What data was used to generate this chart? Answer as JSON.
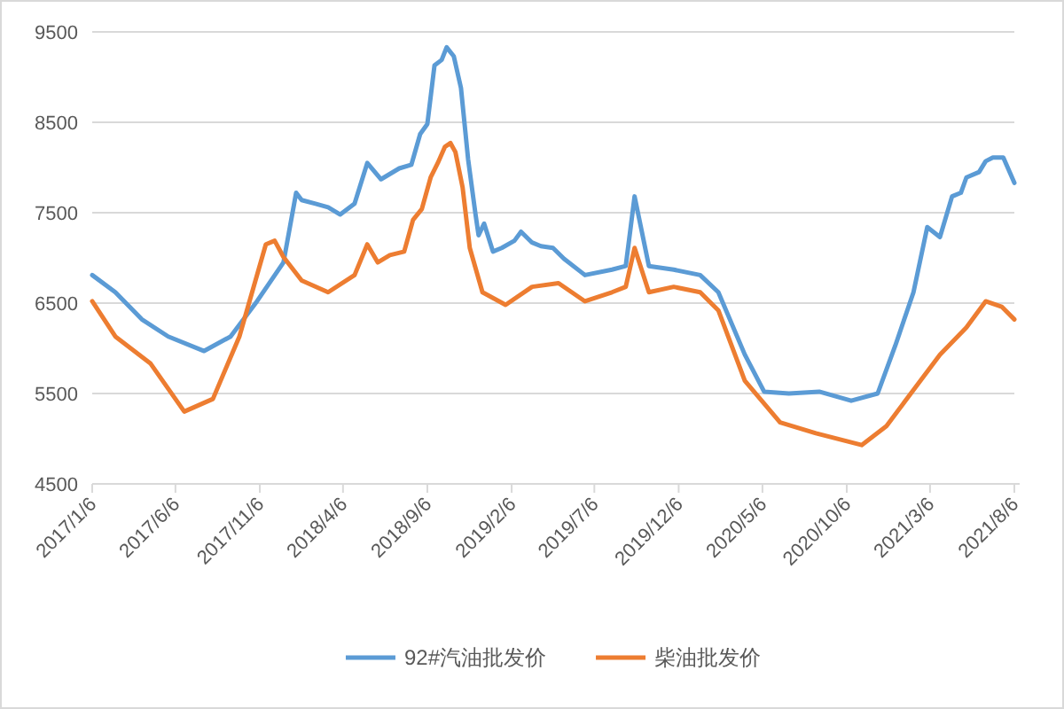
{
  "chart_data": {
    "type": "line",
    "xlim": [
      "2017-01-06",
      "2021-08-06"
    ],
    "xticks": [
      {
        "value": "2017-01-06",
        "label": "2017/1/6"
      },
      {
        "value": "2017-06-06",
        "label": "2017/6/6"
      },
      {
        "value": "2017-11-06",
        "label": "2017/11/6"
      },
      {
        "value": "2018-04-06",
        "label": "2018/4/6"
      },
      {
        "value": "2018-09-06",
        "label": "2018/9/6"
      },
      {
        "value": "2019-02-06",
        "label": "2019/2/6"
      },
      {
        "value": "2019-07-06",
        "label": "2019/7/6"
      },
      {
        "value": "2019-12-06",
        "label": "2019/12/6"
      },
      {
        "value": "2020-05-06",
        "label": "2020/5/6"
      },
      {
        "value": "2020-10-06",
        "label": "2020/10/6"
      },
      {
        "value": "2021-03-06",
        "label": "2021/3/6"
      },
      {
        "value": "2021-08-06",
        "label": "2021/8/6"
      }
    ],
    "ylim": [
      4500,
      9500
    ],
    "yticks": [
      4500,
      5500,
      6500,
      7500,
      8500,
      9500
    ],
    "grid": "y",
    "legend": "bottom",
    "series": [
      {
        "name": "92#汽油批发价",
        "color": "#5b9bd5",
        "x": [
          "2017-01-06",
          "2017-02-17",
          "2017-04-06",
          "2017-05-24",
          "2017-07-28",
          "2017-09-14",
          "2017-11-01",
          "2017-12-19",
          "2018-01-11",
          "2018-01-21",
          "2018-02-15",
          "2018-03-10",
          "2018-04-01",
          "2018-04-27",
          "2018-05-20",
          "2018-06-14",
          "2018-07-17",
          "2018-08-08",
          "2018-08-24",
          "2018-09-06",
          "2018-09-19",
          "2018-10-02",
          "2018-10-11",
          "2018-10-24",
          "2018-11-06",
          "2018-11-19",
          "2018-12-02",
          "2018-12-08",
          "2018-12-18",
          "2019-01-03",
          "2019-01-19",
          "2019-02-11",
          "2019-02-23",
          "2019-03-15",
          "2019-03-31",
          "2019-04-22",
          "2019-05-12",
          "2019-06-19",
          "2019-08-07",
          "2019-09-01",
          "2019-09-17",
          "2019-10-13",
          "2019-11-27",
          "2020-01-14",
          "2020-02-16",
          "2020-04-04",
          "2020-05-09",
          "2020-06-23",
          "2020-08-17",
          "2020-10-14",
          "2020-12-01",
          "2021-01-02",
          "2021-02-04",
          "2021-03-01",
          "2021-03-24",
          "2021-04-15",
          "2021-05-01",
          "2021-05-11",
          "2021-06-03",
          "2021-06-15",
          "2021-06-28",
          "2021-07-17",
          "2021-08-06"
        ],
        "values": [
          6810,
          6620,
          6320,
          6130,
          5970,
          6130,
          6520,
          6950,
          7720,
          7640,
          7600,
          7560,
          7480,
          7600,
          8050,
          7870,
          7990,
          8030,
          8370,
          8480,
          9130,
          9190,
          9330,
          9230,
          8880,
          8090,
          7500,
          7250,
          7380,
          7070,
          7110,
          7190,
          7290,
          7170,
          7130,
          7110,
          6990,
          6810,
          6870,
          6910,
          7680,
          6910,
          6870,
          6810,
          6620,
          5930,
          5520,
          5500,
          5520,
          5420,
          5500,
          6030,
          6620,
          7340,
          7230,
          7680,
          7720,
          7890,
          7950,
          8070,
          8110,
          8110,
          7830
        ]
      },
      {
        "name": "柴油批发价",
        "color": "#ed7d31",
        "x": [
          "2017-01-06",
          "2017-02-17",
          "2017-04-22",
          "2017-06-22",
          "2017-08-13",
          "2017-09-30",
          "2017-11-17",
          "2017-12-03",
          "2017-12-19",
          "2018-01-21",
          "2018-03-10",
          "2018-04-27",
          "2018-05-20",
          "2018-06-08",
          "2018-06-30",
          "2018-07-26",
          "2018-08-11",
          "2018-08-27",
          "2018-09-12",
          "2018-09-25",
          "2018-10-08",
          "2018-10-18",
          "2018-10-27",
          "2018-11-09",
          "2018-11-22",
          "2018-12-15",
          "2019-01-26",
          "2019-03-15",
          "2019-05-02",
          "2019-06-19",
          "2019-08-07",
          "2019-09-01",
          "2019-09-17",
          "2019-10-13",
          "2019-11-27",
          "2020-01-14",
          "2020-02-16",
          "2020-04-04",
          "2020-06-07",
          "2020-08-11",
          "2020-11-02",
          "2020-12-17",
          "2021-02-04",
          "2021-03-24",
          "2021-05-11",
          "2021-06-15",
          "2021-07-14",
          "2021-08-06"
        ],
        "values": [
          6520,
          6130,
          5830,
          5300,
          5440,
          6130,
          7150,
          7190,
          7010,
          6750,
          6620,
          6810,
          7150,
          6950,
          7030,
          7070,
          7420,
          7540,
          7890,
          8050,
          8230,
          8270,
          8170,
          7780,
          7110,
          6620,
          6480,
          6680,
          6720,
          6520,
          6620,
          6680,
          7110,
          6620,
          6680,
          6620,
          6420,
          5640,
          5180,
          5060,
          4930,
          5140,
          5540,
          5930,
          6230,
          6520,
          6460,
          6320
        ]
      }
    ]
  }
}
